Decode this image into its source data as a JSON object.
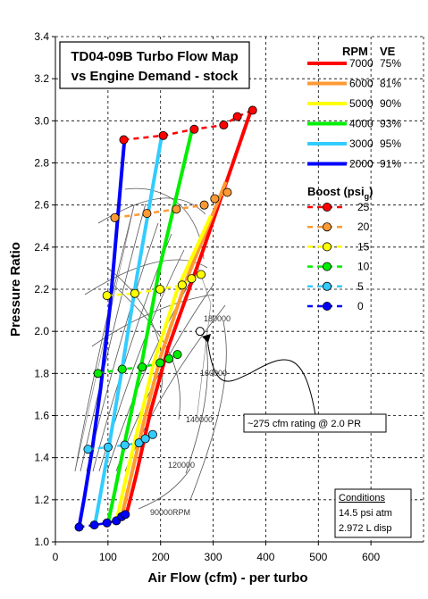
{
  "chart_data": {
    "type": "line",
    "title": [
      "TD04-09B Turbo Flow Map",
      "vs Engine Demand - stock"
    ],
    "xlabel": "Air Flow (cfm) - per turbo",
    "ylabel": "Pressure Ratio",
    "xlim": [
      0,
      700
    ],
    "ylim": [
      1.0,
      3.4
    ],
    "xticks": [
      "0",
      "100",
      "200",
      "300",
      "400",
      "500",
      "600"
    ],
    "yticks": [
      "1.0",
      "1.2",
      "1.4",
      "1.6",
      "1.8",
      "2.0",
      "2.2",
      "2.4",
      "2.6",
      "2.8",
      "3.0",
      "3.2",
      "3.4"
    ],
    "grid": "dashed",
    "legend_rpm": {
      "header_rpm": "RPM",
      "header_ve": "VE",
      "entries": [
        {
          "rpm": "7000",
          "ve": "75%",
          "color": "#ff0000"
        },
        {
          "rpm": "6000",
          "ve": "81%",
          "color": "#ff9933"
        },
        {
          "rpm": "5000",
          "ve": "90%",
          "color": "#ffff00"
        },
        {
          "rpm": "4000",
          "ve": "93%",
          "color": "#00ee00"
        },
        {
          "rpm": "3000",
          "ve": "95%",
          "color": "#33ccff"
        },
        {
          "rpm": "2000",
          "ve": "91%",
          "color": "#0000ff"
        }
      ]
    },
    "legend_boost": {
      "header": "Boost (psi",
      "header_sub": "g",
      "header_close": ")",
      "entries": [
        {
          "label": "25",
          "color": "#ff0000"
        },
        {
          "label": "20",
          "color": "#ff9933"
        },
        {
          "label": "15",
          "color": "#ffff00"
        },
        {
          "label": "10",
          "color": "#00ee00"
        },
        {
          "label": "5",
          "color": "#33ccff"
        },
        {
          "label": "0",
          "color": "#0000ff"
        }
      ]
    },
    "series": [
      {
        "name": "7000",
        "color": "#ff0000",
        "x": [
          135,
          153,
          181,
          214,
          280,
          372
        ],
        "y": [
          1.13,
          1.31,
          1.62,
          1.92,
          2.38,
          3.05
        ]
      },
      {
        "name": "6000",
        "color": "#ff9933",
        "x": [
          126,
          143,
          169,
          200,
          250,
          324
        ],
        "y": [
          1.12,
          1.3,
          1.58,
          1.88,
          2.25,
          2.71
        ]
      },
      {
        "name": "5000",
        "color": "#ffff00",
        "x": [
          117,
          133,
          158,
          187,
          232,
          296
        ],
        "y": [
          1.11,
          1.29,
          1.55,
          1.85,
          2.2,
          2.55
        ]
      },
      {
        "name": "4000",
        "color": "#00ee00",
        "x": [
          100,
          113,
          135,
          162,
          198,
          260
        ],
        "y": [
          1.09,
          1.24,
          1.51,
          1.82,
          2.3,
          2.96
        ]
      },
      {
        "name": "3000",
        "color": "#33ccff",
        "x": [
          75,
          86,
          103,
          124,
          155,
          203
        ],
        "y": [
          1.08,
          1.23,
          1.47,
          1.78,
          2.26,
          2.94
        ]
      },
      {
        "name": "2000",
        "color": "#0000ff",
        "x": [
          45,
          55,
          70,
          86,
          104,
          131
        ],
        "y": [
          1.07,
          1.21,
          1.44,
          1.73,
          2.12,
          2.9
        ]
      }
    ],
    "boost_points": [
      {
        "label": "0",
        "color": "#0000ff",
        "points": [
          [
            45,
            1.07
          ],
          [
            74,
            1.08
          ],
          [
            98,
            1.09
          ],
          [
            116,
            1.1
          ],
          [
            126,
            1.12
          ],
          [
            133,
            1.13
          ]
        ]
      },
      {
        "label": "5",
        "color": "#33ccff",
        "points": [
          [
            62,
            1.44
          ],
          [
            100,
            1.45
          ],
          [
            132,
            1.46
          ],
          [
            159,
            1.47
          ],
          [
            171,
            1.49
          ],
          [
            185,
            1.51
          ]
        ]
      },
      {
        "label": "10",
        "color": "#00ee00",
        "points": [
          [
            81,
            1.8
          ],
          [
            127,
            1.82
          ],
          [
            165,
            1.83
          ],
          [
            199,
            1.85
          ],
          [
            216,
            1.87
          ],
          [
            232,
            1.89
          ]
        ]
      },
      {
        "label": "15",
        "color": "#ffff00",
        "points": [
          [
            98,
            2.17
          ],
          [
            151,
            2.18
          ],
          [
            199,
            2.2
          ],
          [
            241,
            2.22
          ],
          [
            259,
            2.25
          ],
          [
            277,
            2.27
          ]
        ]
      },
      {
        "label": "20",
        "color": "#ff9933",
        "points": [
          [
            113,
            2.54
          ],
          [
            174,
            2.56
          ],
          [
            230,
            2.58
          ],
          [
            283,
            2.6
          ],
          [
            303,
            2.63
          ],
          [
            327,
            2.66
          ]
        ]
      },
      {
        "label": "25",
        "color": "#ff0000",
        "points": [
          [
            130,
            2.91
          ],
          [
            205,
            2.93
          ],
          [
            264,
            2.96
          ],
          [
            320,
            2.98
          ],
          [
            346,
            3.02
          ],
          [
            375,
            3.05
          ]
        ]
      }
    ],
    "map_labels": [
      "180000",
      "160000",
      "140000",
      "120000",
      "90000RPM"
    ],
    "annotation": {
      "text": "~275 cfm rating @ 2.0 PR",
      "x": 275,
      "y": 2.0
    },
    "conditions": {
      "title": "Conditions",
      "lines": [
        "14.5 psi atm",
        "2.972 L disp"
      ]
    }
  }
}
